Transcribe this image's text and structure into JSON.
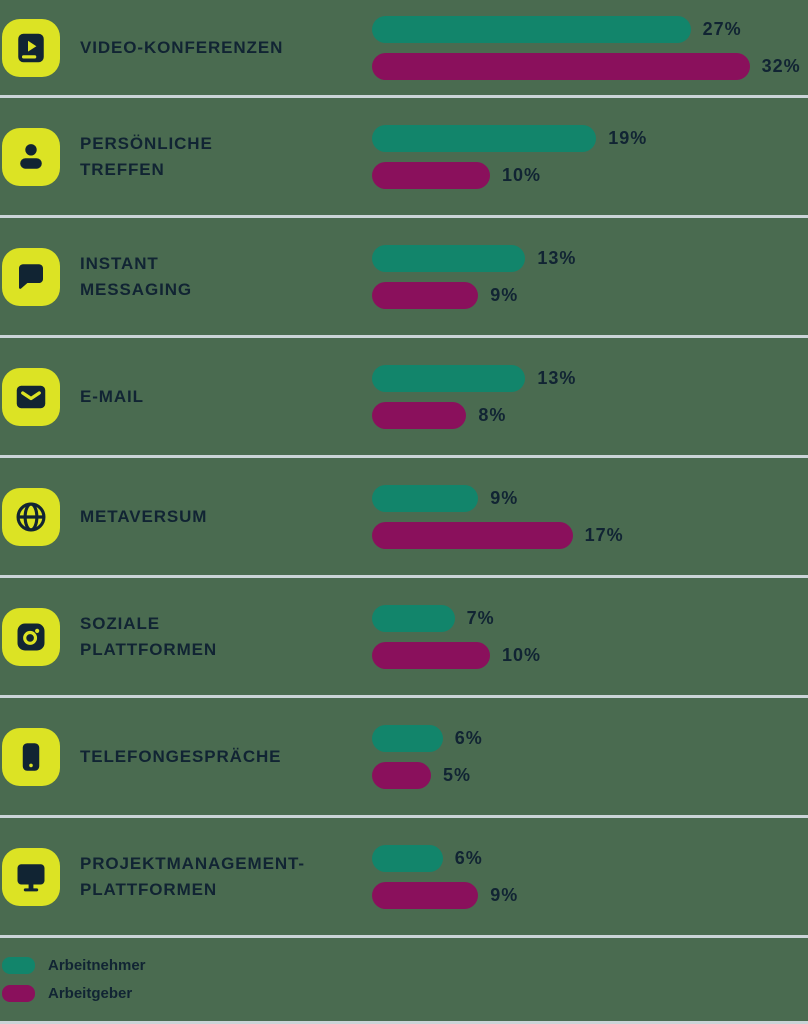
{
  "chart_data": {
    "type": "bar",
    "orientation": "horizontal",
    "title": "",
    "categories": [
      "Video-Konferenzen",
      "Persönliche Treffen",
      "Instant Messaging",
      "E-Mail",
      "Metaversum",
      "Soziale Plattformen",
      "Telefongespräche",
      "Projektmanagement-Plattformen"
    ],
    "series": [
      {
        "name": "Arbeitnehmer",
        "color": "#12856b",
        "values": [
          27,
          19,
          13,
          13,
          9,
          7,
          6,
          6
        ]
      },
      {
        "name": "Arbeitgeber",
        "color": "#8a105c",
        "values": [
          32,
          10,
          9,
          8,
          17,
          10,
          5,
          9
        ]
      }
    ],
    "value_suffix": "%",
    "xlim": [
      0,
      32
    ],
    "grid": false,
    "legend_position": "bottom-left"
  },
  "rows": [
    {
      "icon": "video-book-icon",
      "label_lines": [
        "VIDEO-KONFERENZEN"
      ],
      "arbeitnehmer": {
        "value": 27,
        "display": "27%"
      },
      "arbeitgeber": {
        "value": 32,
        "display": "32%"
      }
    },
    {
      "icon": "person-icon",
      "label_lines": [
        "PERSÖNLICHE",
        "TREFFEN"
      ],
      "arbeitnehmer": {
        "value": 19,
        "display": "19%"
      },
      "arbeitgeber": {
        "value": 10,
        "display": "10%"
      }
    },
    {
      "icon": "chat-bubble-icon",
      "label_lines": [
        "INSTANT",
        "MESSAGING"
      ],
      "arbeitnehmer": {
        "value": 13,
        "display": "13%"
      },
      "arbeitgeber": {
        "value": 9,
        "display": "9%"
      }
    },
    {
      "icon": "envelope-icon",
      "label_lines": [
        "E-MAIL"
      ],
      "arbeitnehmer": {
        "value": 13,
        "display": "13%"
      },
      "arbeitgeber": {
        "value": 8,
        "display": "8%"
      }
    },
    {
      "icon": "globe-icon",
      "label_lines": [
        "METAVERSUM"
      ],
      "arbeitnehmer": {
        "value": 9,
        "display": "9%"
      },
      "arbeitgeber": {
        "value": 17,
        "display": "17%"
      }
    },
    {
      "icon": "camera-icon",
      "label_lines": [
        "SOZIALE",
        "PLATTFORMEN"
      ],
      "arbeitnehmer": {
        "value": 7,
        "display": "7%"
      },
      "arbeitgeber": {
        "value": 10,
        "display": "10%"
      }
    },
    {
      "icon": "smartphone-icon",
      "label_lines": [
        "TELEFONGESPRÄCHE"
      ],
      "arbeitnehmer": {
        "value": 6,
        "display": "6%"
      },
      "arbeitgeber": {
        "value": 5,
        "display": "5%"
      }
    },
    {
      "icon": "monitor-icon",
      "label_lines": [
        "PROJEKTMANAGEMENT-",
        "PLATTFORMEN"
      ],
      "arbeitnehmer": {
        "value": 6,
        "display": "6%"
      },
      "arbeitgeber": {
        "value": 9,
        "display": "9%"
      }
    }
  ],
  "legend": {
    "items": [
      {
        "label": "Arbeitnehmer",
        "color": "#12856b"
      },
      {
        "label": "Arbeitgeber",
        "color": "#8a105c"
      }
    ]
  },
  "colors": {
    "background": "#4a6b50",
    "divider": "#cbd4d8",
    "icon_tile": "#dce324",
    "text": "#112433",
    "arbeitnehmer": "#12856b",
    "arbeitgeber": "#8a105c"
  }
}
